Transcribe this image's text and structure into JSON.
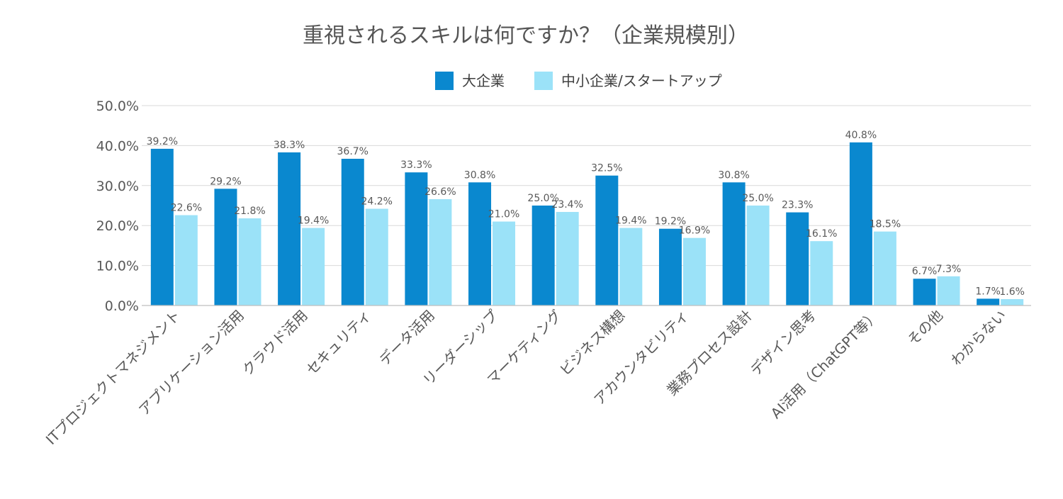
{
  "chart_data": {
    "type": "bar",
    "title": "重視されるスキルは何ですか？（企業規模別）",
    "categories": [
      "ITプロジェクトマネジメント",
      "アプリケーション活用",
      "クラウド活用",
      "セキュリティ",
      "データ活用",
      "リーダーシップ",
      "マーケティング",
      "ビジネス構想",
      "アカウンタビリティ",
      "業務プロセス設計",
      "デザイン思考",
      "AI活用（ChatGPT等）",
      "その他",
      "わからない"
    ],
    "series": [
      {
        "name": "大企業",
        "color": "#0a88cf",
        "values": [
          39.2,
          29.2,
          38.3,
          36.7,
          33.3,
          30.8,
          25.0,
          32.5,
          19.2,
          30.8,
          23.3,
          40.8,
          6.7,
          1.7
        ],
        "labels": [
          "39.2%",
          "29.2%",
          "38.3%",
          "36.7%",
          "33.3%",
          "30.8%",
          "25.0%",
          "32.5%",
          "19.2%",
          "30.8%",
          "23.3%",
          "40.8%",
          "6.7%",
          "1.7%"
        ]
      },
      {
        "name": "中小企業/スタートアップ",
        "color": "#9be2f8",
        "values": [
          22.6,
          21.8,
          19.4,
          24.2,
          26.6,
          21.0,
          23.4,
          19.4,
          16.9,
          25.0,
          16.1,
          18.5,
          7.3,
          1.6
        ],
        "labels": [
          "22.6%",
          "21.8%",
          "19.4%",
          "24.2%",
          "26.6%",
          "21.0%",
          "23.4%",
          "19.4%",
          "16.9%",
          "25.0%",
          "16.1%",
          "18.5%",
          "7.3%",
          "1.6%"
        ]
      }
    ],
    "ylim": [
      0,
      50
    ],
    "yticks": [
      0,
      10,
      20,
      30,
      40,
      50
    ],
    "ytick_labels": [
      "0.0%",
      "10.0%",
      "20.0%",
      "30.0%",
      "40.0%",
      "50.0%"
    ],
    "xlabel": "",
    "ylabel": "",
    "legend_position": "top-center",
    "grid": true
  }
}
